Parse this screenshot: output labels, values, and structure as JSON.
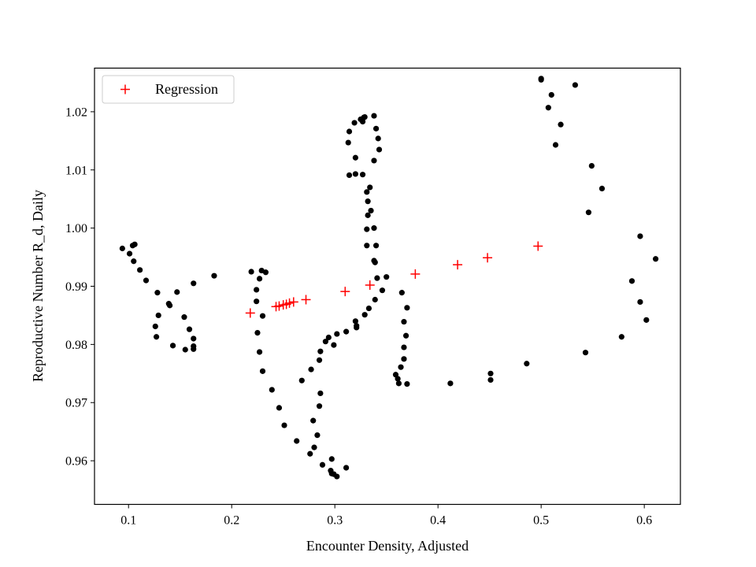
{
  "chart_data": {
    "type": "scatter",
    "title": "",
    "xlabel": "Encounter Density, Adjusted",
    "ylabel": "Reproductive Number R_d, Daily",
    "xlim": [
      0.067,
      0.635
    ],
    "ylim": [
      0.9525,
      1.0275
    ],
    "xticks": [
      0.1,
      0.2,
      0.3,
      0.4,
      0.5,
      0.6
    ],
    "xtick_labels": [
      "0.1",
      "0.2",
      "0.3",
      "0.4",
      "0.5",
      "0.6"
    ],
    "yticks": [
      0.96,
      0.97,
      0.98,
      0.99,
      1.0,
      1.01,
      1.02
    ],
    "ytick_labels": [
      "0.96",
      "0.97",
      "0.98",
      "0.99",
      "1.00",
      "1.01",
      "1.02"
    ],
    "grid": false,
    "legend": {
      "position": "upper left",
      "entries": [
        "Regression"
      ]
    },
    "series": [
      {
        "marker": "dot",
        "color": "#000000",
        "points": [
          [
            0.094,
            0.9965
          ],
          [
            0.101,
            0.9956
          ],
          [
            0.104,
            0.997
          ],
          [
            0.106,
            0.9972
          ],
          [
            0.105,
            0.9943
          ],
          [
            0.111,
            0.9928
          ],
          [
            0.117,
            0.991
          ],
          [
            0.128,
            0.9889
          ],
          [
            0.139,
            0.987
          ],
          [
            0.14,
            0.9867
          ],
          [
            0.147,
            0.989
          ],
          [
            0.129,
            0.985
          ],
          [
            0.126,
            0.9831
          ],
          [
            0.127,
            0.9813
          ],
          [
            0.143,
            0.9798
          ],
          [
            0.155,
            0.9791
          ],
          [
            0.154,
            0.9847
          ],
          [
            0.159,
            0.9826
          ],
          [
            0.163,
            0.981
          ],
          [
            0.163,
            0.9797
          ],
          [
            0.163,
            0.9792
          ],
          [
            0.163,
            0.9905
          ],
          [
            0.183,
            0.9918
          ],
          [
            0.219,
            0.9925
          ],
          [
            0.229,
            0.9927
          ],
          [
            0.233,
            0.9924
          ],
          [
            0.227,
            0.9913
          ],
          [
            0.224,
            0.9894
          ],
          [
            0.224,
            0.9874
          ],
          [
            0.23,
            0.9849
          ],
          [
            0.225,
            0.982
          ],
          [
            0.227,
            0.9787
          ],
          [
            0.23,
            0.9754
          ],
          [
            0.239,
            0.9722
          ],
          [
            0.246,
            0.9691
          ],
          [
            0.251,
            0.9661
          ],
          [
            0.263,
            0.9634
          ],
          [
            0.276,
            0.9612
          ],
          [
            0.28,
            0.9623
          ],
          [
            0.283,
            0.9644
          ],
          [
            0.279,
            0.9669
          ],
          [
            0.285,
            0.9694
          ],
          [
            0.286,
            0.9716
          ],
          [
            0.268,
            0.9738
          ],
          [
            0.277,
            0.9757
          ],
          [
            0.285,
            0.9773
          ],
          [
            0.286,
            0.9788
          ],
          [
            0.291,
            0.9805
          ],
          [
            0.294,
            0.9812
          ],
          [
            0.302,
            0.9818
          ],
          [
            0.299,
            0.9799
          ],
          [
            0.288,
            0.9593
          ],
          [
            0.297,
            0.9603
          ],
          [
            0.296,
            0.9583
          ],
          [
            0.297,
            0.9578
          ],
          [
            0.299,
            0.9577
          ],
          [
            0.302,
            0.9573
          ],
          [
            0.311,
            0.9588
          ],
          [
            0.311,
            0.9822
          ],
          [
            0.32,
            0.984
          ],
          [
            0.321,
            0.9829
          ],
          [
            0.321,
            0.9832
          ],
          [
            0.329,
            0.9851
          ],
          [
            0.333,
            0.9862
          ],
          [
            0.339,
            0.9877
          ],
          [
            0.346,
            0.9893
          ],
          [
            0.341,
            0.9914
          ],
          [
            0.35,
            0.9916
          ],
          [
            0.339,
            0.9941
          ],
          [
            0.338,
            0.9944
          ],
          [
            0.34,
            0.997
          ],
          [
            0.331,
            0.997
          ],
          [
            0.338,
            1.0
          ],
          [
            0.331,
            0.9998
          ],
          [
            0.332,
            1.0022
          ],
          [
            0.335,
            1.003
          ],
          [
            0.332,
            1.0046
          ],
          [
            0.331,
            1.0062
          ],
          [
            0.334,
            1.007
          ],
          [
            0.32,
            1.0093
          ],
          [
            0.314,
            1.0091
          ],
          [
            0.327,
            1.0092
          ],
          [
            0.32,
            1.0121
          ],
          [
            0.338,
            1.0116
          ],
          [
            0.343,
            1.0135
          ],
          [
            0.313,
            1.0147
          ],
          [
            0.342,
            1.0154
          ],
          [
            0.314,
            1.0166
          ],
          [
            0.34,
            1.0171
          ],
          [
            0.319,
            1.0181
          ],
          [
            0.325,
            1.0187
          ],
          [
            0.327,
            1.0183
          ],
          [
            0.328,
            1.019
          ],
          [
            0.329,
            1.0191
          ],
          [
            0.338,
            1.0193
          ],
          [
            0.365,
            0.9889
          ],
          [
            0.37,
            0.9863
          ],
          [
            0.367,
            0.9839
          ],
          [
            0.369,
            0.9815
          ],
          [
            0.367,
            0.9795
          ],
          [
            0.367,
            0.9775
          ],
          [
            0.364,
            0.9761
          ],
          [
            0.359,
            0.9748
          ],
          [
            0.361,
            0.9741
          ],
          [
            0.362,
            0.9733
          ],
          [
            0.37,
            0.9732
          ],
          [
            0.412,
            0.9733
          ],
          [
            0.451,
            0.9739
          ],
          [
            0.451,
            0.975
          ],
          [
            0.486,
            0.9767
          ],
          [
            0.543,
            0.9786
          ],
          [
            0.578,
            0.9813
          ],
          [
            0.602,
            0.9842
          ],
          [
            0.596,
            0.9873
          ],
          [
            0.588,
            0.9909
          ],
          [
            0.611,
            0.9947
          ],
          [
            0.596,
            0.9986
          ],
          [
            0.546,
            1.0027
          ],
          [
            0.559,
            1.0068
          ],
          [
            0.549,
            1.0107
          ],
          [
            0.514,
            1.0143
          ],
          [
            0.519,
            1.0178
          ],
          [
            0.507,
            1.0207
          ],
          [
            0.51,
            1.0229
          ],
          [
            0.533,
            1.0246
          ],
          [
            0.5,
            1.0255
          ],
          [
            0.5,
            1.0257
          ]
        ]
      },
      {
        "name": "Regression",
        "marker": "plus",
        "color": "#ff0000",
        "points": [
          [
            0.218,
            0.9854
          ],
          [
            0.243,
            0.9865
          ],
          [
            0.246,
            0.9866
          ],
          [
            0.25,
            0.9868
          ],
          [
            0.253,
            0.9869
          ],
          [
            0.256,
            0.9871
          ],
          [
            0.26,
            0.9873
          ],
          [
            0.272,
            0.9877
          ],
          [
            0.31,
            0.9891
          ],
          [
            0.334,
            0.9902
          ],
          [
            0.378,
            0.9921
          ],
          [
            0.419,
            0.9937
          ],
          [
            0.448,
            0.9949
          ],
          [
            0.497,
            0.9969
          ]
        ]
      }
    ]
  }
}
